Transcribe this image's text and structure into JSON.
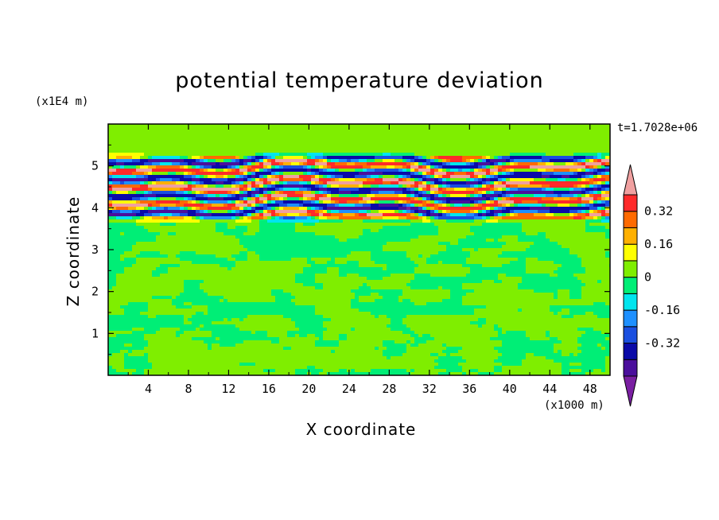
{
  "chart_data": {
    "type": "heatmap",
    "title": "potential temperature deviation",
    "xlabel": "X coordinate",
    "ylabel": "Z coordinate",
    "x_unit_label": "(x1000 m)",
    "y_unit_label": "(x1E4 m)",
    "time_label": "t=1.7028e+06",
    "xlim": [
      0,
      50
    ],
    "ylim": [
      0,
      6
    ],
    "x_ticks": [
      4,
      8,
      12,
      16,
      20,
      24,
      28,
      32,
      36,
      40,
      44,
      48
    ],
    "y_ticks": [
      1,
      2,
      3,
      4,
      5
    ],
    "colorbar": {
      "levels": [
        -0.48,
        -0.4,
        -0.32,
        -0.24,
        -0.16,
        -0.08,
        0,
        0.08,
        0.16,
        0.24,
        0.32,
        0.4
      ],
      "colors": [
        "#7a1fa2",
        "#4b0f9c",
        "#0a0aa8",
        "#1a4fe0",
        "#1e90ff",
        "#00e5ee",
        "#00ee76",
        "#7fee00",
        "#ffff00",
        "#ffb000",
        "#ff6a00",
        "#ff2a2a",
        "#f0a0a0"
      ],
      "tick_labels": [
        "0.32",
        "0.16",
        "0",
        "-0.16",
        "-0.32"
      ],
      "tick_values": [
        0.32,
        0.16,
        0,
        -0.16,
        -0.32
      ]
    },
    "field_description_bands": [
      {
        "z_range": [
          0,
          3.6
        ],
        "dominant_level": [
          -0.08,
          0.08
        ]
      },
      {
        "z_range": [
          3.7,
          5.3
        ],
        "dominant_level": [
          -0.48,
          0.48
        ]
      },
      {
        "z_range": [
          5.3,
          6
        ],
        "dominant_level": [
          0,
          0.08
        ]
      }
    ]
  }
}
